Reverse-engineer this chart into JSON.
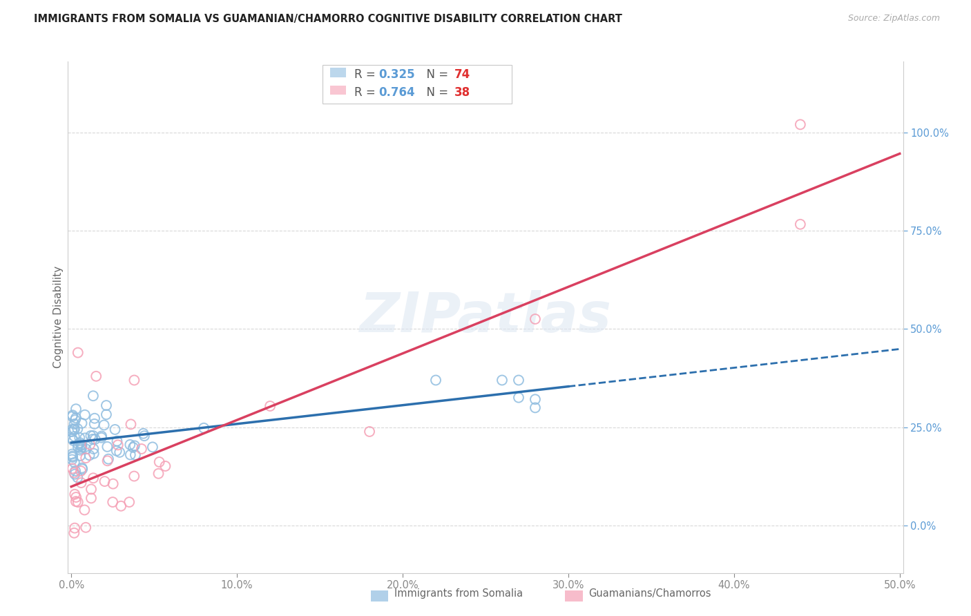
{
  "title": "IMMIGRANTS FROM SOMALIA VS GUAMANIAN/CHAMORRO COGNITIVE DISABILITY CORRELATION CHART",
  "source": "Source: ZipAtlas.com",
  "ylabel": "Cognitive Disability",
  "series1_label": "Immigrants from Somalia",
  "series2_label": "Guamanians/Chamorros",
  "series1_R": 0.325,
  "series1_N": 74,
  "series2_R": 0.764,
  "series2_N": 38,
  "series1_color": "#90bde0",
  "series2_color": "#f5a0b5",
  "trend1_color": "#2c6fad",
  "trend2_color": "#d94060",
  "watermark_color": "#dce6f2",
  "watermark_text": "ZIPatlas",
  "right_yaxis_color": "#5b9bd5",
  "legend_R_color": "#5b9bd5",
  "legend_N_color": "#e03030",
  "grid_color": "#d8d8d8",
  "spine_color": "#cccccc",
  "title_color": "#222222",
  "source_color": "#aaaaaa",
  "ylabel_color": "#666666",
  "tick_color": "#888888"
}
